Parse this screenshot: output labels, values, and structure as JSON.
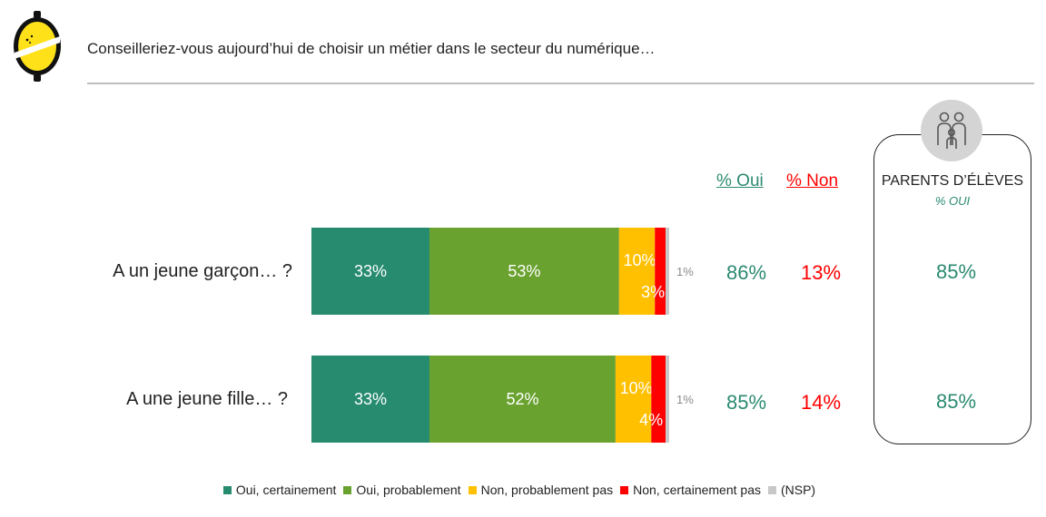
{
  "header": {
    "title": "Conseilleriez-vous aujourd’hui de choisir un métier dans le secteur du numérique…"
  },
  "colors": {
    "oui_certainement": "#268b6f",
    "oui_probablement": "#6aa230",
    "non_probablement_pas": "#ffc000",
    "non_certainement_pas": "#ff0000",
    "nsp": "#c8c8c8",
    "oui_text": "#2a8a71",
    "non_text": "#ff0000"
  },
  "columns": {
    "oui_header": "% Oui",
    "non_header": "% Non"
  },
  "panel": {
    "title": "PARENTS D’ÉLÈVES",
    "subtitle": "% OUI",
    "icon": "family-icon"
  },
  "legend": [
    {
      "label": "Oui, certainement",
      "color": "#268b6f"
    },
    {
      "label": "Oui, probablement",
      "color": "#6aa230"
    },
    {
      "label": "Non, probablement pas",
      "color": "#ffc000"
    },
    {
      "label": "Non, certainement pas",
      "color": "#ff0000"
    },
    {
      "label": "(NSP)",
      "color": "#c8c8c8"
    }
  ],
  "chart_data": {
    "type": "bar",
    "orientation": "horizontal",
    "stacked": true,
    "categories": [
      "A un jeune garçon… ?",
      "A une jeune fille… ?"
    ],
    "series": [
      {
        "name": "Oui, certainement",
        "values": [
          33,
          33
        ],
        "labels": [
          "33%",
          "33%"
        ]
      },
      {
        "name": "Oui, probablement",
        "values": [
          53,
          52
        ],
        "labels": [
          "53%",
          "52%"
        ]
      },
      {
        "name": "Non, probablement pas",
        "values": [
          10,
          10
        ],
        "labels": [
          "10%",
          "10%"
        ]
      },
      {
        "name": "Non, certainement pas",
        "values": [
          3,
          4
        ],
        "labels": [
          "3%",
          "4%"
        ]
      },
      {
        "name": "(NSP)",
        "values": [
          1,
          1
        ],
        "labels": [
          "1%",
          "1%"
        ]
      }
    ],
    "pct_oui": [
      "86%",
      "85%"
    ],
    "pct_non": [
      "13%",
      "14%"
    ],
    "parents_oui": [
      "85%",
      "85%"
    ],
    "xlim": [
      0,
      100
    ]
  }
}
